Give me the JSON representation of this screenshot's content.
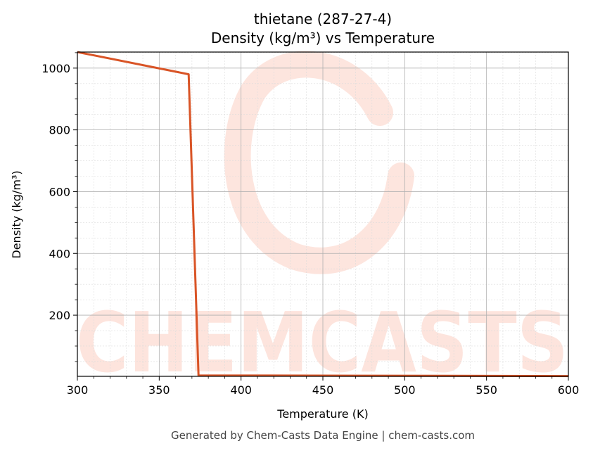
{
  "title_line1": "thietane (287-27-4)",
  "title_line2": "Density (kg/m³) vs Temperature",
  "footer": "Generated by Chem-Casts Data Engine | chem-casts.com",
  "watermark": "CHEMCASTS",
  "colors": {
    "line": "#d95426",
    "watermark": "#fde0d8",
    "grid_major": "#b0b0b0",
    "grid_minor": "#dcdcdc"
  },
  "chart_data": {
    "type": "line",
    "title": "thietane (287-27-4)\nDensity (kg/m³) vs Temperature",
    "xlabel": "Temperature (K)",
    "ylabel": "Density (kg/m³)",
    "xlim": [
      300,
      600
    ],
    "ylim": [
      2,
      1052
    ],
    "xticks": [
      300,
      350,
      400,
      450,
      500,
      550,
      600
    ],
    "yticks": [
      200,
      400,
      600,
      800,
      1000
    ],
    "grid": true,
    "series": [
      {
        "x": [
          300,
          368,
          374,
          600
        ],
        "y": [
          1052,
          980,
          5,
          3
        ]
      }
    ]
  }
}
